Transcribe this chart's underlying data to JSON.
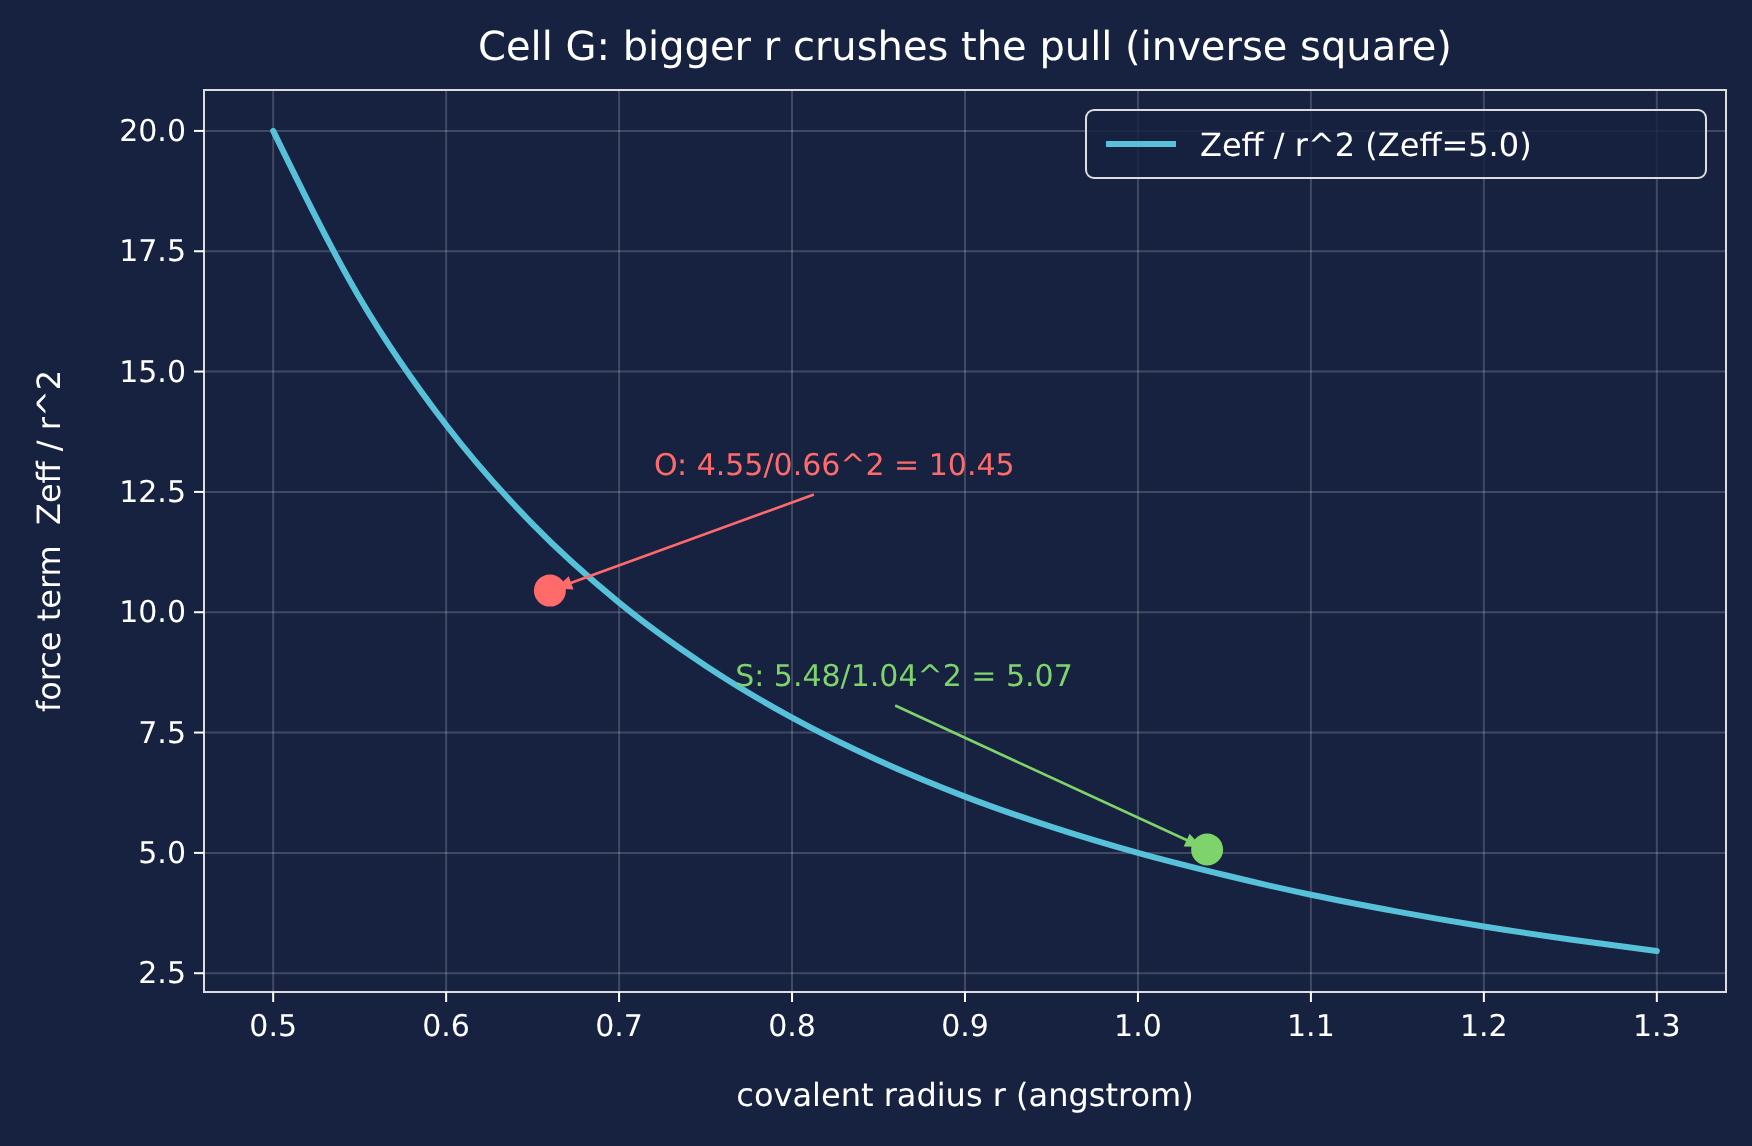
{
  "chart_data": {
    "type": "line",
    "title": "Cell G: bigger r crushes the pull (inverse square)",
    "xlabel": "covalent radius r (angstrom)",
    "ylabel": "force term  Zeff / r^2",
    "series": [
      {
        "name": "Zeff / r^2 (Zeff=5.0)",
        "color": "#56c1d9",
        "marker": "none",
        "x": [
          0.5,
          0.55,
          0.6,
          0.65,
          0.7,
          0.75,
          0.8,
          0.85,
          0.9,
          0.95,
          1.0,
          1.05,
          1.1,
          1.15,
          1.2,
          1.25,
          1.3
        ],
        "values": [
          20.0,
          16.53,
          13.89,
          11.83,
          10.2,
          8.89,
          7.81,
          6.92,
          6.17,
          5.54,
          5.0,
          4.54,
          4.13,
          3.78,
          3.47,
          3.2,
          2.96
        ]
      },
      {
        "type": "scatter",
        "color": "#ff6b6b",
        "marker": "circle",
        "x": [
          0.66
        ],
        "values": [
          10.45
        ]
      },
      {
        "type": "scatter",
        "color": "#7ed36b",
        "marker": "circle",
        "x": [
          1.04
        ],
        "values": [
          5.07
        ]
      }
    ],
    "annotations": [
      {
        "text": "O: 4.55/0.66^2 = 10.45",
        "x": 0.66,
        "y": 10.45
      },
      {
        "text": "S: 5.48/1.04^2 = 5.07",
        "x": 1.04,
        "y": 5.07
      }
    ],
    "xlim": [
      0.46,
      1.34
    ],
    "xticks": [
      0.5,
      0.6,
      0.7,
      0.8,
      0.9,
      {
        "value": 1,
        "label": "1.0"
      },
      1.1,
      1.2,
      1.3
    ],
    "ylim": [
      2.11,
      20.85
    ],
    "yticks": [
      2.5,
      {
        "value": 5,
        "label": "5.0"
      },
      7.5,
      {
        "value": 10,
        "label": "10.0"
      },
      12.5,
      {
        "value": 15,
        "label": "15.0"
      },
      17.5,
      {
        "value": 20,
        "label": "20.0"
      }
    ],
    "grid": true,
    "legend": "top right",
    "line_style": "solid"
  }
}
